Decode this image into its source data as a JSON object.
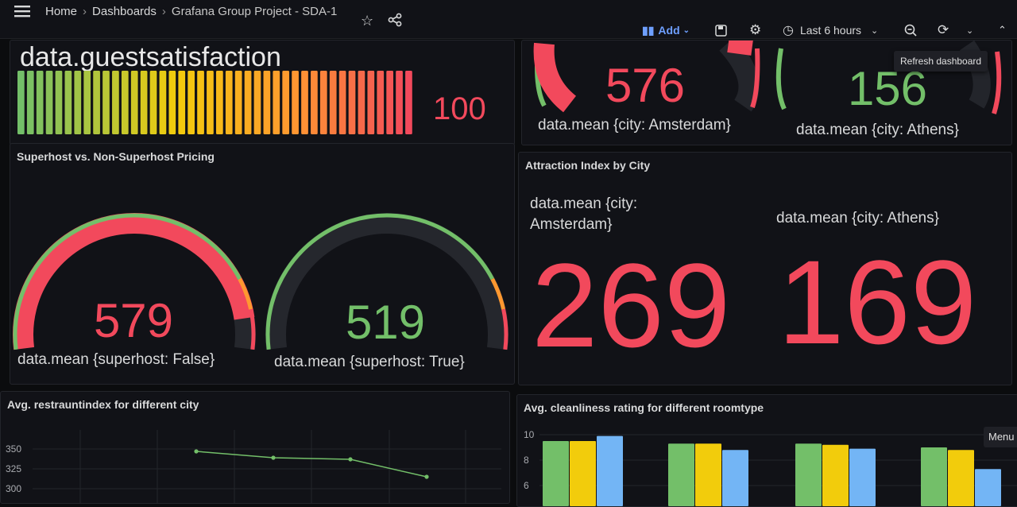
{
  "breadcrumb": {
    "home": "Home",
    "dashboards": "Dashboards",
    "project": "Grafana Group Project - SDA-1"
  },
  "toolbar": {
    "add_label": "Add",
    "time_range": "Last 6 hours",
    "refresh_tooltip": "Refresh dashboard"
  },
  "menu_tooltip": "Menu",
  "icons": [
    "hamburger-icon",
    "star-icon",
    "share-icon",
    "add-panel-icon",
    "chevron-down-icon",
    "save-icon",
    "gear-icon",
    "clock-icon",
    "zoom-out-icon",
    "refresh-icon",
    "collapse-icon"
  ],
  "colors": {
    "red": "#f2495c",
    "green": "#73bf69",
    "orange": "#ff9830",
    "yellow": "#f2cc0c",
    "blue": "#73b5f5"
  },
  "panels": {
    "guestsat": {
      "title": "data.guestsatisfaction",
      "value": "100"
    },
    "attraction_top": {
      "amsterdam": {
        "value": "576",
        "label": "data.mean {city: Amsterdam}"
      },
      "athens": {
        "value": "156",
        "label": "data.mean {city: Athens}"
      }
    },
    "superhost": {
      "title": "Superhost vs. Non-Superhost Pricing",
      "false": {
        "value": "579",
        "label": "data.mean {superhost: False}",
        "fraction": 0.92
      },
      "true": {
        "value": "519",
        "label": "data.mean {superhost: True}",
        "fraction": 0.0
      }
    },
    "attraction_index": {
      "title": "Attraction Index by City",
      "amsterdam": {
        "label_line1": "data.mean {city:",
        "label_line2": "Amsterdam}",
        "value": "269"
      },
      "athens": {
        "label": "data.mean {city: Athens}",
        "value": "169"
      }
    }
  },
  "chart_data": [
    {
      "type": "line",
      "title": "Avg. restrauntindex for different city",
      "yticks": [
        "350",
        "325",
        "300"
      ],
      "x": [
        1,
        2,
        3,
        4
      ],
      "values": [
        347,
        339,
        337,
        315
      ],
      "ylim": [
        300,
        360
      ]
    },
    {
      "type": "bar",
      "title": "Avg. cleanliness rating for different roomtype",
      "yticks": [
        "10",
        "8",
        "6"
      ],
      "groups": 4,
      "series": [
        {
          "values": [
            9.5,
            9.3,
            9.3,
            9.0
          ]
        },
        {
          "values": [
            9.5,
            9.3,
            9.2,
            8.8
          ]
        },
        {
          "values": [
            9.9,
            8.8,
            8.9,
            7.3
          ]
        }
      ],
      "ylim": [
        6,
        10
      ]
    }
  ]
}
